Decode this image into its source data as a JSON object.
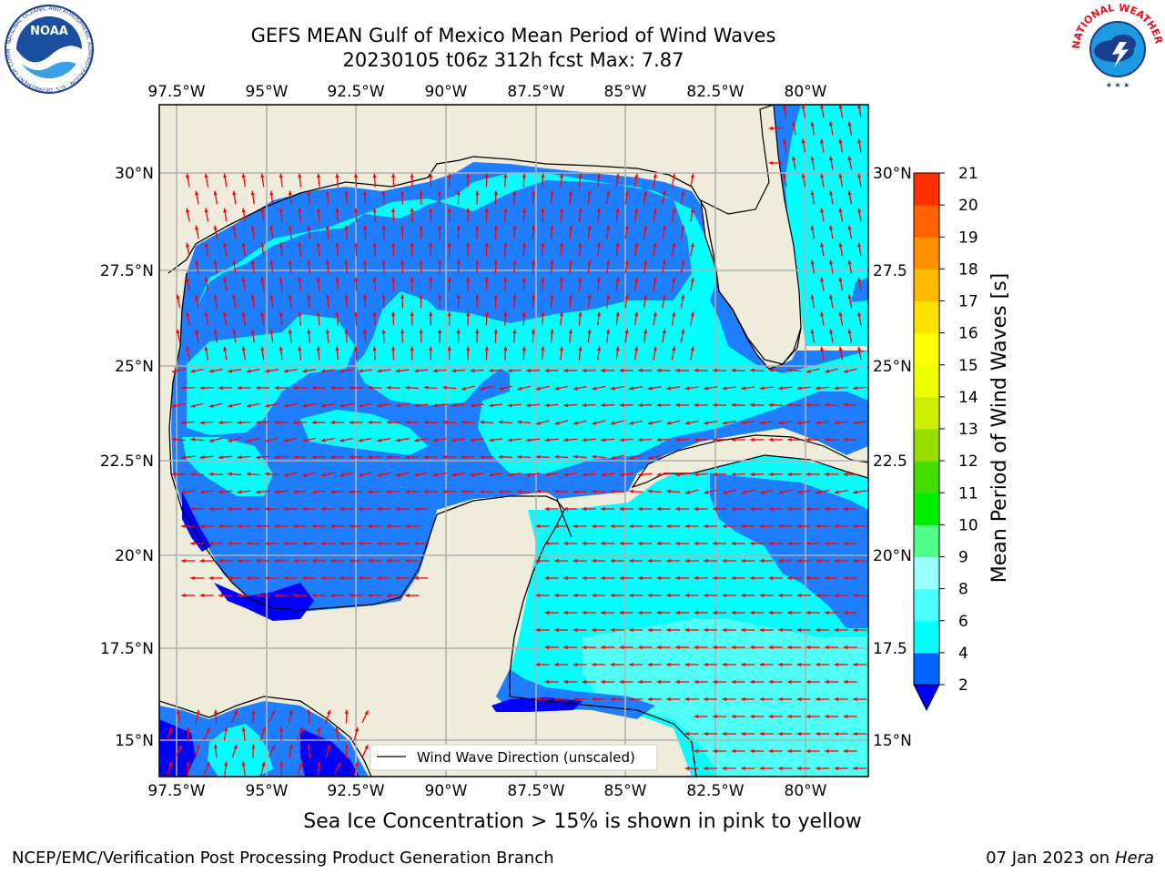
{
  "header": {
    "title_line1": "GEFS MEAN Gulf of Mexico Mean Period of Wind Waves",
    "title_line2": "20230105 t06z 312h fcst   Max: 7.87"
  },
  "logos": {
    "left": "NOAA",
    "left_ring_text": "NATIONAL OCEANIC AND ATMOSPHERIC ADMINISTRATION · U.S. DEPARTMENT OF COMMERCE",
    "right_ring_text": "NATIONAL WEATHER SERVICE"
  },
  "map": {
    "lon_labels": [
      "97.5°W",
      "95°W",
      "92.5°W",
      "90°W",
      "87.5°W",
      "85°W",
      "82.5°W",
      "80°W"
    ],
    "lat_labels_left": [
      "30°N",
      "27.5°N",
      "25°N",
      "22.5°N",
      "20°N",
      "17.5°N",
      "15°N"
    ],
    "lat_labels_right": [
      "30°N",
      "27.5",
      "25°N",
      "22.5",
      "20°N",
      "17.5",
      "15°N"
    ],
    "legend_label": "Wind Wave Direction (unscaled)",
    "colors": {
      "land": "#efecdc",
      "ocean_low": "#0000ff",
      "ocean_2_4": "#1f7dff",
      "ocean_4_6": "#00ffff",
      "ocean_6_8": "#4ffff5",
      "arrow": "#ff0000",
      "grid": "#b0b0b0"
    }
  },
  "colorbar": {
    "label": "Mean Period of Wind Waves [s]",
    "ticks": [
      "2",
      "4",
      "6",
      "8",
      "9",
      "10",
      "11",
      "12",
      "13",
      "14",
      "15",
      "16",
      "17",
      "18",
      "19",
      "20",
      "21"
    ],
    "colors": [
      "#0064ff",
      "#00ffff",
      "#4cffff",
      "#9affff",
      "#52ff8a",
      "#00ee00",
      "#44dd00",
      "#99dd00",
      "#ccee00",
      "#eeff00",
      "#ffff00",
      "#ffe000",
      "#ffba00",
      "#ff9000",
      "#ff6400",
      "#ff3000"
    ],
    "extend_color": "#0000ff"
  },
  "footer": {
    "sea_ice_note": "Sea Ice Concentration > 15% is shown in pink to yellow",
    "left": "NCEP/EMC/Verification Post Processing Product Generation Branch",
    "right_prefix": "07 Jan 2023 on ",
    "right_machine": "Hera"
  }
}
